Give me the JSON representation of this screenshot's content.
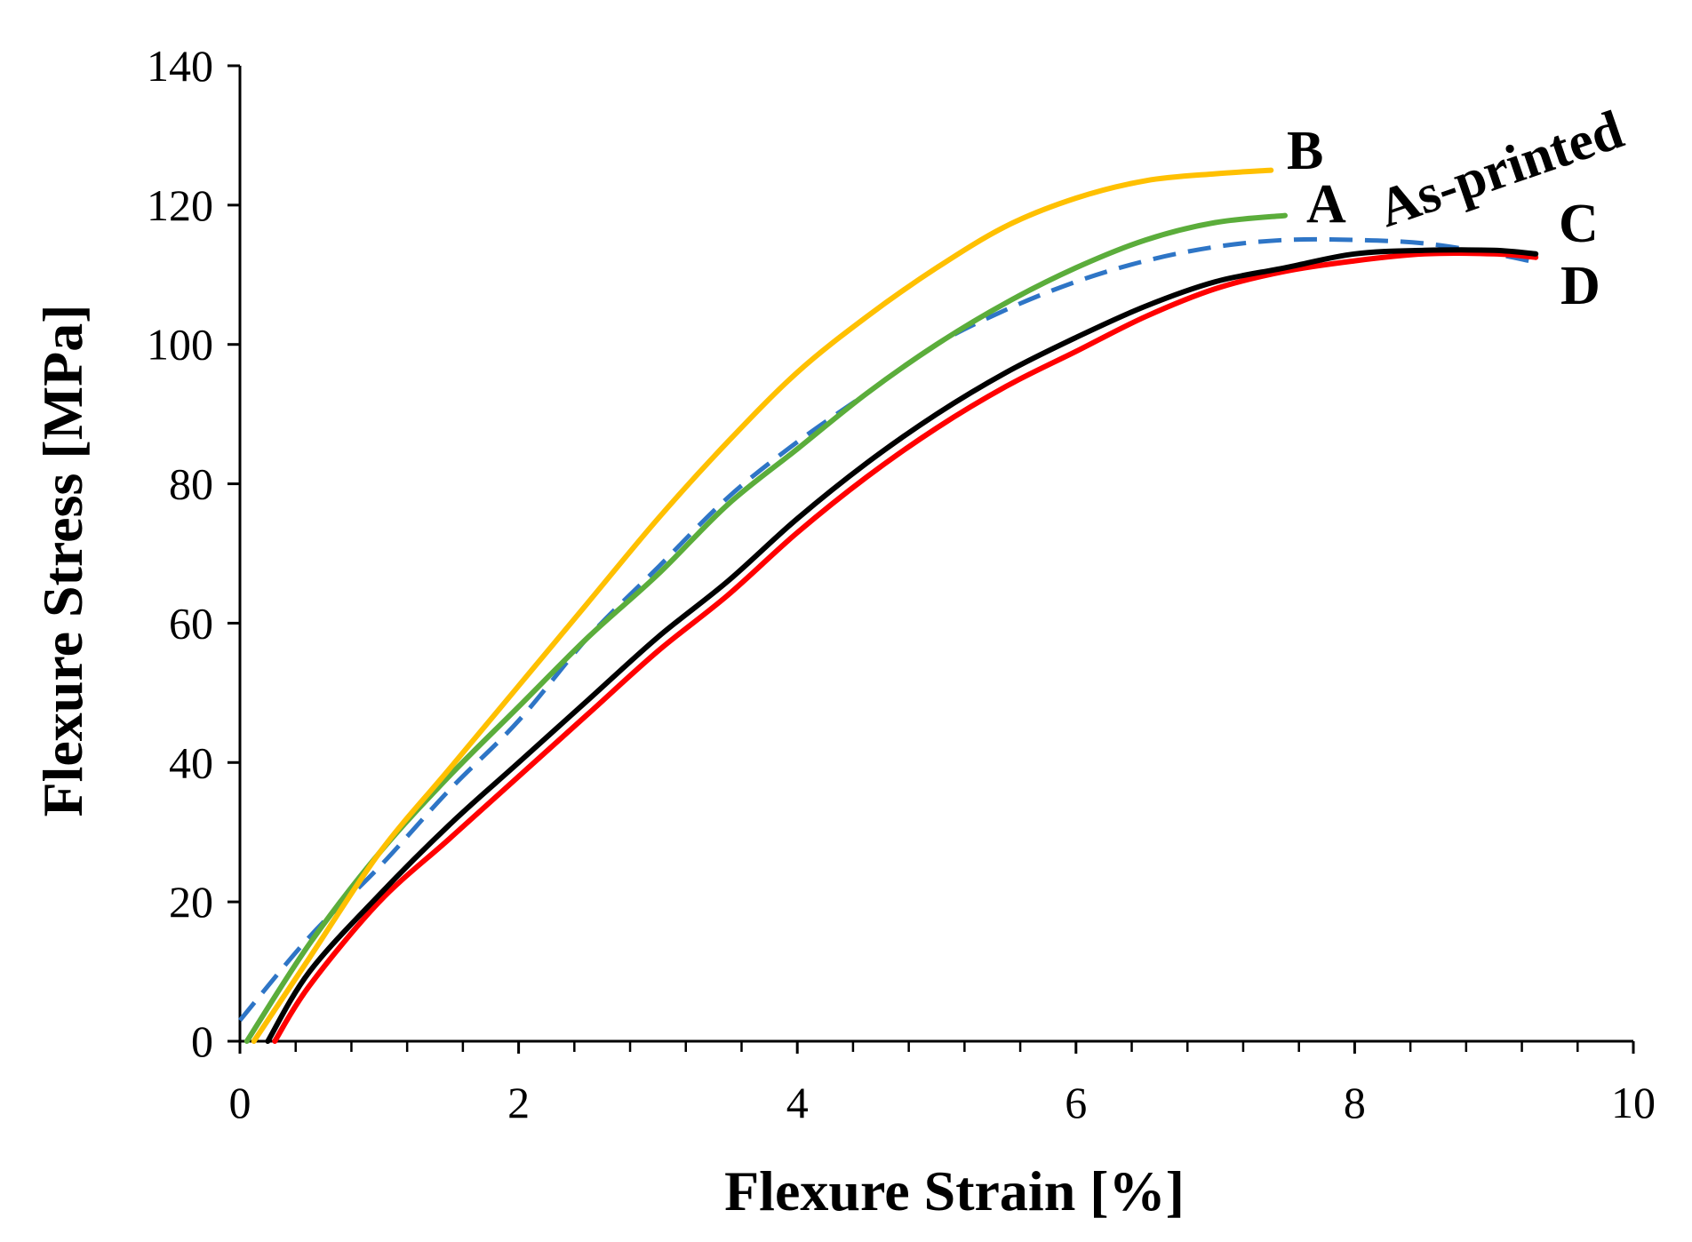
{
  "chart_data": {
    "type": "line",
    "title": "",
    "xlabel": "Flexure Strain [%]",
    "ylabel": "Flexure Stress [MPa]",
    "xlim": [
      0,
      10
    ],
    "ylim": [
      0,
      140
    ],
    "xticks": [
      0,
      2,
      4,
      6,
      8,
      10
    ],
    "yticks": [
      0,
      20,
      40,
      60,
      80,
      100,
      120,
      140
    ],
    "grid": false,
    "series": [
      {
        "name": "B",
        "color": "#FFC000",
        "dash": false,
        "x": [
          0.1,
          0.5,
          1.0,
          1.5,
          2.0,
          2.5,
          3.0,
          3.5,
          4.0,
          4.5,
          5.0,
          5.5,
          6.0,
          6.5,
          7.0,
          7.4
        ],
        "y": [
          0,
          12,
          27,
          39,
          51,
          63,
          75,
          86,
          96,
          104,
          111,
          117,
          121,
          123.5,
          124.5,
          125
        ]
      },
      {
        "name": "A",
        "color": "#5BAD3B",
        "dash": false,
        "x": [
          0.05,
          0.5,
          1.0,
          1.5,
          2.0,
          2.5,
          3.0,
          3.5,
          4.0,
          4.5,
          5.0,
          5.5,
          6.0,
          6.5,
          7.0,
          7.5
        ],
        "y": [
          0,
          14,
          27,
          38,
          48,
          58,
          67,
          77,
          85,
          93,
          100,
          106,
          111,
          115,
          117.5,
          118.5
        ]
      },
      {
        "name": "As-printed",
        "color": "#2E75C6",
        "dash": true,
        "x": [
          0,
          0.5,
          1.0,
          1.5,
          2.0,
          2.5,
          3.0,
          3.5,
          4.0,
          4.5,
          5.0,
          5.5,
          6.0,
          6.5,
          7.0,
          7.5,
          8.0,
          8.5,
          9.0,
          9.25
        ],
        "y": [
          3,
          15,
          25,
          36,
          46,
          58,
          68,
          78,
          86,
          93,
          100,
          105,
          109,
          112,
          114,
          115,
          115,
          114.5,
          113,
          112
        ]
      },
      {
        "name": "C",
        "color": "#000000",
        "dash": false,
        "x": [
          0.2,
          0.5,
          1.0,
          1.5,
          2.0,
          2.5,
          3.0,
          3.5,
          4.0,
          4.5,
          5.0,
          5.5,
          6.0,
          6.5,
          7.0,
          7.5,
          8.0,
          8.5,
          9.0,
          9.3
        ],
        "y": [
          0,
          10,
          21,
          31,
          40,
          49,
          58,
          66,
          75,
          83,
          90,
          96,
          101,
          105.5,
          109,
          111,
          113,
          113.5,
          113.5,
          113
        ]
      },
      {
        "name": "D",
        "color": "#FF0000",
        "dash": false,
        "x": [
          0.25,
          0.5,
          1.0,
          1.5,
          2.0,
          2.5,
          3.0,
          3.5,
          4.0,
          4.5,
          5.0,
          5.5,
          6.0,
          6.5,
          7.0,
          7.5,
          8.0,
          8.5,
          9.0,
          9.3
        ],
        "y": [
          0,
          8,
          20,
          29,
          38,
          47,
          56,
          64,
          73,
          81,
          88,
          94,
          99,
          104,
          108,
          110.5,
          112,
          113,
          113,
          112.5
        ]
      }
    ],
    "annotations": [
      {
        "text": "B",
        "series": "B"
      },
      {
        "text": "A",
        "series": "A"
      },
      {
        "text": "As-printed",
        "series": "As-printed"
      },
      {
        "text": "C",
        "series": "C"
      },
      {
        "text": "D",
        "series": "D"
      }
    ]
  }
}
